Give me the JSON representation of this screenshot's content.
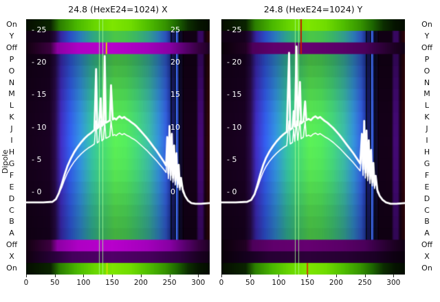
{
  "figure": {
    "title_left": "24.8 (HexE24=1024) X",
    "title_right": "24.8 (HexE24=1024) Y",
    "y_axis_title": "Dipole",
    "row_labels": [
      "On",
      "Y",
      "Off",
      "P",
      "O",
      "N",
      "M",
      "L",
      "K",
      "J",
      "I",
      "H",
      "G",
      "F",
      "E",
      "D",
      "C",
      "B",
      "A",
      "Off",
      "X",
      "On"
    ],
    "inner_ticks_left": [
      "- 25",
      "- 20",
      "- 15",
      "- 10",
      "- 5",
      "- 0"
    ],
    "inner_tick_values": [
      25,
      20,
      15,
      10,
      5,
      0
    ],
    "inner_ticks_right": [
      "25",
      "20",
      "15",
      "10",
      "5",
      "0"
    ],
    "x_tick_labels": [
      "0",
      "50",
      "100",
      "150",
      "200",
      "250",
      "300"
    ],
    "x_tick_values": [
      0,
      50,
      100,
      150,
      200,
      250,
      300
    ],
    "colors": {
      "line": "#ffffff",
      "magenta_band": "#b400c8",
      "green_band": "#7ee600",
      "blue_body": "#2e55d8",
      "background": "#120016"
    }
  },
  "palettes": {
    "body": [
      [
        0,
        "#120016"
      ],
      [
        40,
        "#17001f"
      ],
      [
        50,
        "#260a44"
      ],
      [
        60,
        "#3a28b0"
      ],
      [
        76,
        "#2e55d8"
      ],
      [
        94,
        "#2e86cc"
      ],
      [
        114,
        "#31b295"
      ],
      [
        134,
        "#41c86a"
      ],
      [
        154,
        "#52d84d"
      ],
      [
        174,
        "#4bd455"
      ],
      [
        194,
        "#3fc472"
      ],
      [
        214,
        "#36aa9a"
      ],
      [
        230,
        "#2f84c4"
      ],
      [
        243,
        "#2f58cc"
      ],
      [
        250,
        "#2038a0"
      ],
      [
        256,
        "#141250"
      ],
      [
        262,
        "#2a48c0"
      ],
      [
        268,
        "#0e0e34"
      ],
      [
        274,
        "#120016"
      ],
      [
        296,
        "#130016"
      ],
      [
        300,
        "#3c0868"
      ],
      [
        307,
        "#3c0868"
      ],
      [
        311,
        "#150014"
      ],
      [
        316,
        "#2a040a"
      ],
      [
        320,
        "#32050a"
      ]
    ],
    "off": [
      [
        0,
        "#120010"
      ],
      [
        42,
        "#3c0040"
      ],
      [
        54,
        "#8c00a4"
      ],
      [
        90,
        "#ae00c4"
      ],
      [
        150,
        "#b800cc"
      ],
      [
        210,
        "#a400bc"
      ],
      [
        250,
        "#8800a4"
      ],
      [
        272,
        "#600078"
      ],
      [
        300,
        "#360040"
      ],
      [
        320,
        "#1e0022"
      ]
    ],
    "on": [
      [
        0,
        "#050e00"
      ],
      [
        42,
        "#0a2400"
      ],
      [
        58,
        "#2c7e00"
      ],
      [
        88,
        "#4ab800"
      ],
      [
        118,
        "#68d600"
      ],
      [
        150,
        "#7ee600"
      ],
      [
        182,
        "#70dc00"
      ],
      [
        212,
        "#50be00"
      ],
      [
        242,
        "#369400"
      ],
      [
        262,
        "#1e6800"
      ],
      [
        282,
        "#0c2e00"
      ],
      [
        302,
        "#051400"
      ],
      [
        320,
        "#040c00"
      ]
    ],
    "xrow": [
      [
        0,
        "#100010"
      ],
      [
        48,
        "#28003a"
      ],
      [
        80,
        "#44005c"
      ],
      [
        150,
        "#500068"
      ],
      [
        220,
        "#44005a"
      ],
      [
        268,
        "#300042"
      ],
      [
        300,
        "#1a0022"
      ],
      [
        320,
        "#120016"
      ]
    ]
  },
  "chart_data": [
    {
      "type": "heatmap",
      "title": "24.8 (HexE24=1024) X",
      "x_range": [
        0,
        320
      ],
      "value_axis": {
        "min": 0,
        "max": 25,
        "ticks": [
          0,
          5,
          10,
          15,
          20,
          25
        ]
      },
      "rows": [
        "On",
        "Y",
        "Off",
        "P",
        "O",
        "N",
        "M",
        "L",
        "K",
        "J",
        "I",
        "H",
        "G",
        "F",
        "E",
        "D",
        "C",
        "B",
        "A",
        "Off",
        "X",
        "On"
      ],
      "row_styles": [
        "on",
        "body",
        "off",
        "body",
        "body",
        "body",
        "body",
        "body",
        "body",
        "body",
        "body",
        "body",
        "body",
        "body",
        "body",
        "body",
        "body",
        "body",
        "body",
        "off",
        "xrow",
        "on"
      ],
      "row_gain": [
        1,
        0.92,
        1,
        0.8,
        0.86,
        0.92,
        0.98,
        1.04,
        1.08,
        1.1,
        1.12,
        1.1,
        1.08,
        1.05,
        1.0,
        0.95,
        0.9,
        0.86,
        0.82,
        1,
        1,
        1
      ],
      "off_gain": 1.0,
      "features": {
        "stripe_region": [
          247,
          274
        ],
        "stripe_period": 6,
        "bright_column": 262,
        "green_lines": [
          127,
          133
        ]
      },
      "accents": [
        {
          "x": 140,
          "row_start": 2,
          "row_end": 3,
          "color": "#d8d400"
        },
        {
          "x": 141,
          "row_start": 21,
          "row_end": 22,
          "color": "#cce000"
        }
      ],
      "line_series": {
        "name": "beam-profile-x",
        "points": [
          [
            0,
            -1.6
          ],
          [
            30,
            -1.6
          ],
          [
            46,
            -1.5
          ],
          [
            52,
            -1.1
          ],
          [
            57,
            -0.2
          ],
          [
            62,
            1.2
          ],
          [
            67,
            2.7
          ],
          [
            72,
            4.0
          ],
          [
            78,
            5.2
          ],
          [
            84,
            6.2
          ],
          [
            90,
            7.0
          ],
          [
            96,
            7.7
          ],
          [
            102,
            8.3
          ],
          [
            108,
            8.8
          ],
          [
            114,
            9.2
          ],
          [
            119,
            9.6
          ],
          [
            122,
            19
          ],
          [
            124,
            9.8
          ],
          [
            127,
            10.1
          ],
          [
            130,
            14.5
          ],
          [
            132,
            10.2
          ],
          [
            135,
            10.5
          ],
          [
            137,
            21
          ],
          [
            139,
            10.7
          ],
          [
            143,
            10.9
          ],
          [
            146,
            11.1
          ],
          [
            148,
            16.5
          ],
          [
            151,
            11.2
          ],
          [
            154,
            11.4
          ],
          [
            157,
            11.2
          ],
          [
            160,
            11.5
          ],
          [
            163,
            11.7
          ],
          [
            167,
            11.4
          ],
          [
            171,
            11.6
          ],
          [
            175,
            11.3
          ],
          [
            179,
            11.1
          ],
          [
            183,
            10.8
          ],
          [
            188,
            10.5
          ],
          [
            193,
            10.1
          ],
          [
            198,
            9.6
          ],
          [
            204,
            9.0
          ],
          [
            210,
            8.4
          ],
          [
            216,
            7.7
          ],
          [
            222,
            7.0
          ],
          [
            228,
            6.3
          ],
          [
            234,
            5.5
          ],
          [
            240,
            4.7
          ],
          [
            244,
            4.1
          ],
          [
            246,
            8.5
          ],
          [
            248,
            2.9
          ],
          [
            250,
            10.2
          ],
          [
            252,
            2.6
          ],
          [
            254,
            9.0
          ],
          [
            256,
            2.2
          ],
          [
            258,
            7.2
          ],
          [
            260,
            1.7
          ],
          [
            262,
            6.0
          ],
          [
            264,
            1.2
          ],
          [
            266,
            4.2
          ],
          [
            268,
            0.7
          ],
          [
            270,
            2.2
          ],
          [
            273,
            0.4
          ],
          [
            277,
            -0.6
          ],
          [
            282,
            -1.3
          ],
          [
            288,
            -1.7
          ],
          [
            295,
            -1.8
          ],
          [
            305,
            -1.8
          ],
          [
            320,
            -1.7
          ]
        ]
      }
    },
    {
      "type": "heatmap",
      "title": "24.8 (HexE24=1024) Y",
      "x_range": [
        0,
        320
      ],
      "value_axis": {
        "min": 0,
        "max": 25,
        "ticks": [
          0,
          5,
          10,
          15,
          20,
          25
        ]
      },
      "rows": [
        "On",
        "Y",
        "Off",
        "P",
        "O",
        "N",
        "M",
        "L",
        "K",
        "J",
        "I",
        "H",
        "G",
        "F",
        "E",
        "D",
        "C",
        "B",
        "A",
        "Off",
        "X",
        "On"
      ],
      "row_styles": [
        "on",
        "body",
        "off",
        "body",
        "body",
        "body",
        "body",
        "body",
        "body",
        "body",
        "body",
        "body",
        "body",
        "body",
        "body",
        "body",
        "body",
        "body",
        "body",
        "off",
        "xrow",
        "on"
      ],
      "row_gain": [
        1,
        0.92,
        1,
        0.8,
        0.86,
        0.92,
        0.98,
        1.04,
        1.08,
        1.1,
        1.12,
        1.1,
        1.08,
        1.05,
        1.0,
        0.95,
        0.9,
        0.86,
        0.82,
        1,
        1,
        1
      ],
      "off_gain": 0.55,
      "features": {
        "stripe_region": [
          247,
          274
        ],
        "stripe_period": 6,
        "bright_column": 262,
        "green_lines": [
          128,
          134
        ]
      },
      "accents": [
        {
          "x": 139,
          "row_start": 0,
          "row_end": 3,
          "color": "#c41a00"
        },
        {
          "x": 150,
          "row_start": 21,
          "row_end": 22,
          "color": "#d04000"
        }
      ],
      "line_series": {
        "name": "beam-profile-y",
        "points": [
          [
            0,
            -1.6
          ],
          [
            25,
            -1.6
          ],
          [
            45,
            -1.5
          ],
          [
            52,
            -1.2
          ],
          [
            58,
            -0.3
          ],
          [
            63,
            1.2
          ],
          [
            68,
            2.8
          ],
          [
            73,
            4.2
          ],
          [
            78,
            5.3
          ],
          [
            84,
            6.3
          ],
          [
            90,
            7.1
          ],
          [
            96,
            7.8
          ],
          [
            102,
            8.4
          ],
          [
            108,
            8.9
          ],
          [
            114,
            9.3
          ],
          [
            118,
            21.5
          ],
          [
            120,
            9.6
          ],
          [
            124,
            9.9
          ],
          [
            126,
            12.5
          ],
          [
            128,
            10.1
          ],
          [
            131,
            22.5
          ],
          [
            133,
            10.3
          ],
          [
            137,
            17
          ],
          [
            139,
            10.6
          ],
          [
            143,
            10.9
          ],
          [
            146,
            14
          ],
          [
            148,
            11.1
          ],
          [
            152,
            11.3
          ],
          [
            156,
            11.1
          ],
          [
            160,
            11.5
          ],
          [
            164,
            11.7
          ],
          [
            168,
            11.4
          ],
          [
            172,
            11.6
          ],
          [
            176,
            11.3
          ],
          [
            180,
            11.0
          ],
          [
            185,
            10.7
          ],
          [
            190,
            10.3
          ],
          [
            195,
            9.9
          ],
          [
            200,
            9.4
          ],
          [
            206,
            8.8
          ],
          [
            212,
            8.1
          ],
          [
            218,
            7.4
          ],
          [
            224,
            6.7
          ],
          [
            230,
            6.0
          ],
          [
            236,
            5.2
          ],
          [
            242,
            4.4
          ],
          [
            245,
            9.0
          ],
          [
            247,
            3.5
          ],
          [
            249,
            11.0
          ],
          [
            251,
            3.0
          ],
          [
            253,
            9.5
          ],
          [
            255,
            2.5
          ],
          [
            257,
            8.0
          ],
          [
            259,
            2.0
          ],
          [
            261,
            6.5
          ],
          [
            263,
            1.5
          ],
          [
            265,
            4.5
          ],
          [
            267,
            1.0
          ],
          [
            269,
            2.5
          ],
          [
            272,
            0.3
          ],
          [
            276,
            -0.6
          ],
          [
            281,
            -1.2
          ],
          [
            287,
            -1.6
          ],
          [
            295,
            -1.8
          ],
          [
            305,
            -1.8
          ],
          [
            320,
            -1.7
          ]
        ]
      }
    }
  ]
}
